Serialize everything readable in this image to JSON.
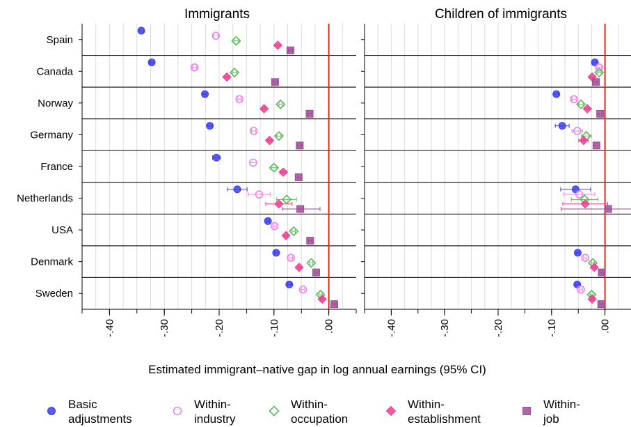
{
  "chart_data": {
    "type": "scatter",
    "xlabel": "Estimated immigrant–native gap in log annual earnings (95% CI)",
    "xlim": [
      -0.45,
      0.05
    ],
    "xticks": [
      -0.4,
      -0.3,
      -0.2,
      -0.1,
      0.0
    ],
    "xtick_labels": [
      "-.40",
      "-.30",
      "-.20",
      "-.10",
      ".00"
    ],
    "reference_line": {
      "x": 0,
      "color": "#e8231c"
    },
    "legend_position": "bottom",
    "categories": [
      "Spain",
      "Canada",
      "Norway",
      "Germany",
      "France",
      "Netherlands",
      "USA",
      "Denmark",
      "Sweden"
    ],
    "series": [
      {
        "name": "Basic adjustments",
        "marker": "circle-filled",
        "color": "#3b3ff0"
      },
      {
        "name": "Within-industry",
        "marker": "circle-open",
        "color": "#f07ff0"
      },
      {
        "name": "Within-occupation",
        "marker": "diamond-open",
        "color": "#5cb85c"
      },
      {
        "name": "Within-establishment",
        "marker": "diamond-filled",
        "color": "#ec3f8f"
      },
      {
        "name": "Within-job",
        "marker": "square-filled",
        "color": "#9c4d96"
      }
    ],
    "panels": [
      {
        "title": "Immigrants",
        "values": {
          "Spain": [
            [
              -0.342,
              -0.346,
              -0.338
            ],
            [
              -0.206,
              -0.21,
              -0.202
            ],
            [
              -0.169,
              -0.173,
              -0.165
            ],
            [
              -0.093,
              -0.097,
              -0.089
            ],
            [
              -0.07,
              -0.074,
              -0.066
            ]
          ],
          "Canada": [
            [
              -0.323,
              -0.327,
              -0.319
            ],
            [
              -0.245,
              -0.249,
              -0.241
            ],
            [
              -0.172,
              -0.176,
              -0.168
            ],
            [
              -0.186,
              -0.19,
              -0.182
            ],
            [
              -0.098,
              -0.102,
              -0.094
            ]
          ],
          "Norway": [
            [
              -0.226,
              -0.229,
              -0.223
            ],
            [
              -0.163,
              -0.166,
              -0.16
            ],
            [
              -0.088,
              -0.091,
              -0.085
            ],
            [
              -0.118,
              -0.121,
              -0.115
            ],
            [
              -0.035,
              -0.038,
              -0.032
            ]
          ],
          "Germany": [
            [
              -0.217,
              -0.222,
              -0.212
            ],
            [
              -0.137,
              -0.141,
              -0.133
            ],
            [
              -0.091,
              -0.095,
              -0.087
            ],
            [
              -0.108,
              -0.112,
              -0.104
            ],
            [
              -0.053,
              -0.057,
              -0.049
            ]
          ],
          "France": [
            [
              -0.205,
              -0.212,
              -0.198
            ],
            [
              -0.138,
              -0.144,
              -0.132
            ],
            [
              -0.1,
              -0.106,
              -0.094
            ],
            [
              -0.083,
              -0.089,
              -0.077
            ],
            [
              -0.055,
              -0.061,
              -0.049
            ]
          ],
          "Netherlands": [
            [
              -0.167,
              -0.185,
              -0.149
            ],
            [
              -0.127,
              -0.147,
              -0.107
            ],
            [
              -0.077,
              -0.095,
              -0.059
            ],
            [
              -0.091,
              -0.115,
              -0.067
            ],
            [
              -0.052,
              -0.085,
              -0.016
            ]
          ],
          "USA": [
            [
              -0.111,
              -0.114,
              -0.108
            ],
            [
              -0.099,
              -0.102,
              -0.096
            ],
            [
              -0.064,
              -0.067,
              -0.061
            ],
            [
              -0.078,
              -0.081,
              -0.075
            ],
            [
              -0.034,
              -0.037,
              -0.031
            ]
          ],
          "Denmark": [
            [
              -0.096,
              -0.099,
              -0.093
            ],
            [
              -0.069,
              -0.072,
              -0.066
            ],
            [
              -0.032,
              -0.035,
              -0.029
            ],
            [
              -0.054,
              -0.057,
              -0.051
            ],
            [
              -0.023,
              -0.026,
              -0.02
            ]
          ],
          "Sweden": [
            [
              -0.072,
              -0.075,
              -0.069
            ],
            [
              -0.047,
              -0.05,
              -0.044
            ],
            [
              -0.015,
              -0.018,
              -0.012
            ],
            [
              -0.012,
              -0.015,
              -0.009
            ],
            [
              0.01,
              0.007,
              0.013
            ]
          ]
        }
      },
      {
        "title": "Children of immigrants",
        "values": {
          "Spain": null,
          "Canada": [
            [
              -0.019,
              -0.023,
              -0.015
            ],
            [
              -0.011,
              -0.015,
              -0.007
            ],
            [
              -0.011,
              -0.015,
              -0.007
            ],
            [
              -0.024,
              -0.028,
              -0.02
            ],
            [
              -0.017,
              -0.021,
              -0.013
            ]
          ],
          "Norway": [
            [
              -0.091,
              -0.095,
              -0.087
            ],
            [
              -0.058,
              -0.062,
              -0.054
            ],
            [
              -0.045,
              -0.049,
              -0.041
            ],
            [
              -0.033,
              -0.037,
              -0.029
            ],
            [
              -0.009,
              -0.013,
              -0.005
            ]
          ],
          "Germany": [
            [
              -0.08,
              -0.093,
              -0.067
            ],
            [
              -0.052,
              -0.062,
              -0.042
            ],
            [
              -0.035,
              -0.044,
              -0.026
            ],
            [
              -0.04,
              -0.049,
              -0.031
            ],
            [
              -0.016,
              -0.022,
              -0.01
            ]
          ],
          "France": null,
          "Netherlands": [
            [
              -0.055,
              -0.083,
              -0.027
            ],
            [
              -0.048,
              -0.077,
              -0.019
            ],
            [
              -0.038,
              -0.063,
              -0.013
            ],
            [
              -0.037,
              -0.079,
              0.005
            ],
            [
              0.006,
              -0.082,
              0.05
            ]
          ],
          "USA": null,
          "Denmark": [
            [
              -0.051,
              -0.054,
              -0.048
            ],
            [
              -0.037,
              -0.04,
              -0.034
            ],
            [
              -0.023,
              -0.026,
              -0.02
            ],
            [
              -0.02,
              -0.023,
              -0.017
            ],
            [
              -0.006,
              -0.009,
              -0.003
            ]
          ],
          "Sweden": [
            [
              -0.052,
              -0.055,
              -0.049
            ],
            [
              -0.045,
              -0.048,
              -0.042
            ],
            [
              -0.025,
              -0.028,
              -0.022
            ],
            [
              -0.024,
              -0.027,
              -0.021
            ],
            [
              -0.007,
              -0.01,
              -0.004
            ]
          ]
        }
      }
    ]
  },
  "legend": [
    {
      "line1": "Basic",
      "line2": "adjustments"
    },
    {
      "line1": "Within-",
      "line2": "industry"
    },
    {
      "line1": "Within-",
      "line2": "occupation"
    },
    {
      "line1": "Within-",
      "line2": "establishment"
    },
    {
      "line1": "Within-",
      "line2": "job"
    }
  ]
}
